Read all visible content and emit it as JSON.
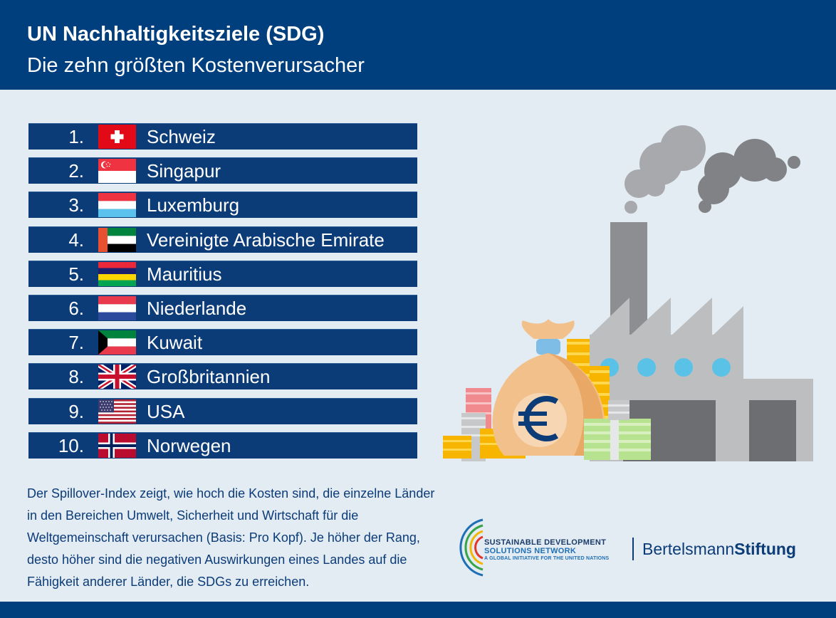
{
  "header": {
    "title": "UN Nachhaltigkeitsziele (SDG)",
    "subtitle": "Die zehn größten Kostenverursacher"
  },
  "ranking": [
    {
      "rank": "1.",
      "country": "Schweiz",
      "flag": "switzerland-flag"
    },
    {
      "rank": "2.",
      "country": "Singapur",
      "flag": "singapore-flag"
    },
    {
      "rank": "3.",
      "country": "Luxemburg",
      "flag": "luxembourg-flag"
    },
    {
      "rank": "4.",
      "country": "Vereinigte Arabische Emirate",
      "flag": "uae-flag"
    },
    {
      "rank": "5.",
      "country": "Mauritius",
      "flag": "mauritius-flag"
    },
    {
      "rank": "6.",
      "country": "Niederlande",
      "flag": "netherlands-flag"
    },
    {
      "rank": "7.",
      "country": "Kuwait",
      "flag": "kuwait-flag"
    },
    {
      "rank": "8.",
      "country": "Großbritannien",
      "flag": "uk-flag"
    },
    {
      "rank": "9.",
      "country": "USA",
      "flag": "usa-flag"
    },
    {
      "rank": "10.",
      "country": "Norwegen",
      "flag": "norway-flag"
    }
  ],
  "description": "Der Spillover-Index zeigt, wie hoch die Kosten sind, die einzelne Länder in den Bereichen Umwelt, Sicherheit und Wirtschaft für die Weltgemeinschaft verursachen (Basis: Pro Kopf). Je höher der Rang, desto höher sind die negativen Auswirkungen eines Landes auf die Fähigkeit anderer Länder, die SDGs zu erreichen.",
  "logos": {
    "sdsn_line1": "SUSTAINABLE DEVELOPMENT",
    "sdsn_line2": "SOLUTIONS NETWORK",
    "sdsn_line3": "A GLOBAL INITIATIVE FOR THE UNITED NATIONS",
    "bertelsmann_regular": "Bertelsmann",
    "bertelsmann_bold": "Stiftung"
  },
  "colors": {
    "header_bg": "#003f7d",
    "row_bg": "#0c3c78",
    "page_bg": "#e3ebf3",
    "text_dark": "#0c3c78"
  },
  "illustration": {
    "icons": [
      "factory-icon",
      "smoke-cloud-icon",
      "money-bag-icon",
      "euro-icon",
      "coin-stack-icon",
      "banknote-bundle-icon"
    ]
  }
}
